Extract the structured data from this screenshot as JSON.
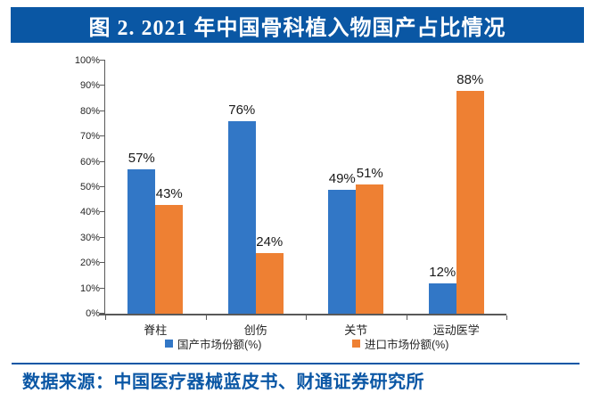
{
  "title": {
    "text": "图 2. 2021 年中国骨科植入物国产占比情况"
  },
  "source": {
    "text": "数据来源：中国医疗器械蓝皮书、财通证券研究所"
  },
  "colors": {
    "title_bar_bg": "#0A57A4",
    "title_text": "#FFFFFF",
    "source_blue": "#0B57A5",
    "axis": "#595959",
    "domestic_blue": "#3277C6",
    "import_orange": "#EE8033"
  },
  "chart_data": {
    "type": "bar",
    "title": "2021 年中国骨科植入物国产占比情况",
    "categories": [
      "脊柱",
      "创伤",
      "关节",
      "运动医学"
    ],
    "series": [
      {
        "name": "国产市场份额(%)",
        "color": "#3277C6",
        "values": [
          57,
          76,
          49,
          12
        ]
      },
      {
        "name": "进口市场份额(%)",
        "color": "#EE8033",
        "values": [
          43,
          24,
          51,
          88
        ]
      }
    ],
    "xlabel": "",
    "ylabel": "",
    "ylim": [
      0,
      100
    ],
    "y_tick_labels": [
      "0%",
      "10%",
      "20%",
      "30%",
      "40%",
      "50%",
      "60%",
      "70%",
      "80%",
      "90%",
      "100%"
    ],
    "data_label_format": "{v}%",
    "grid": false,
    "legend_position": "bottom"
  }
}
